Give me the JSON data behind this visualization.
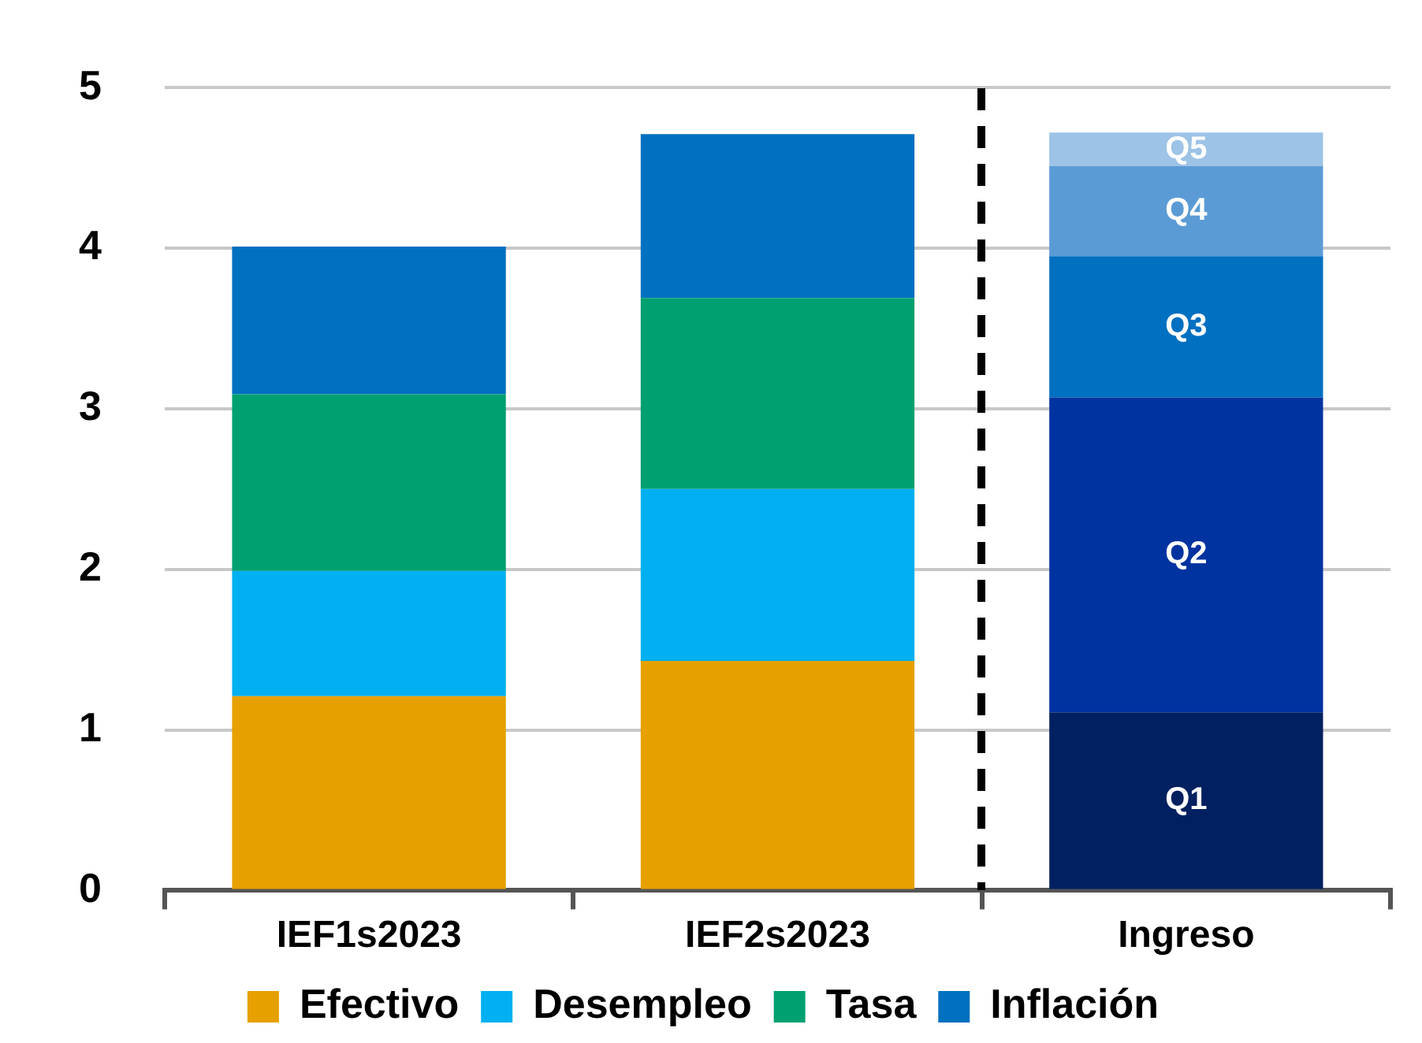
{
  "chart_data": {
    "type": "bar",
    "stacked": true,
    "categories": [
      "IEF1s2023",
      "IEF2s2023",
      "Ingreso"
    ],
    "series": [
      {
        "name": "Efectivo",
        "color": "#e6a000",
        "values": [
          1.21,
          1.43,
          null
        ]
      },
      {
        "name": "Desempleo",
        "color": "#00b0f0",
        "values": [
          0.78,
          1.07,
          null
        ]
      },
      {
        "name": "Tasa",
        "color": "#00a070",
        "values": [
          1.1,
          1.19,
          null
        ]
      },
      {
        "name": "Inflación",
        "color": "#0070c0",
        "values": [
          0.92,
          1.02,
          null
        ]
      },
      {
        "name": "Q1",
        "color": "#002060",
        "values": [
          null,
          null,
          1.11
        ]
      },
      {
        "name": "Q2",
        "color": "#0033a0",
        "values": [
          null,
          null,
          1.96
        ]
      },
      {
        "name": "Q3",
        "color": "#0070c0",
        "values": [
          null,
          null,
          0.88
        ]
      },
      {
        "name": "Q4",
        "color": "#5b9bd5",
        "values": [
          null,
          null,
          0.56
        ]
      },
      {
        "name": "Q5",
        "color": "#9dc3e6",
        "values": [
          null,
          null,
          0.21
        ]
      }
    ],
    "ylim": [
      0,
      5
    ],
    "yticks": [
      0,
      1,
      2,
      3,
      4,
      5
    ],
    "grid": "y",
    "legend": "bottom"
  }
}
